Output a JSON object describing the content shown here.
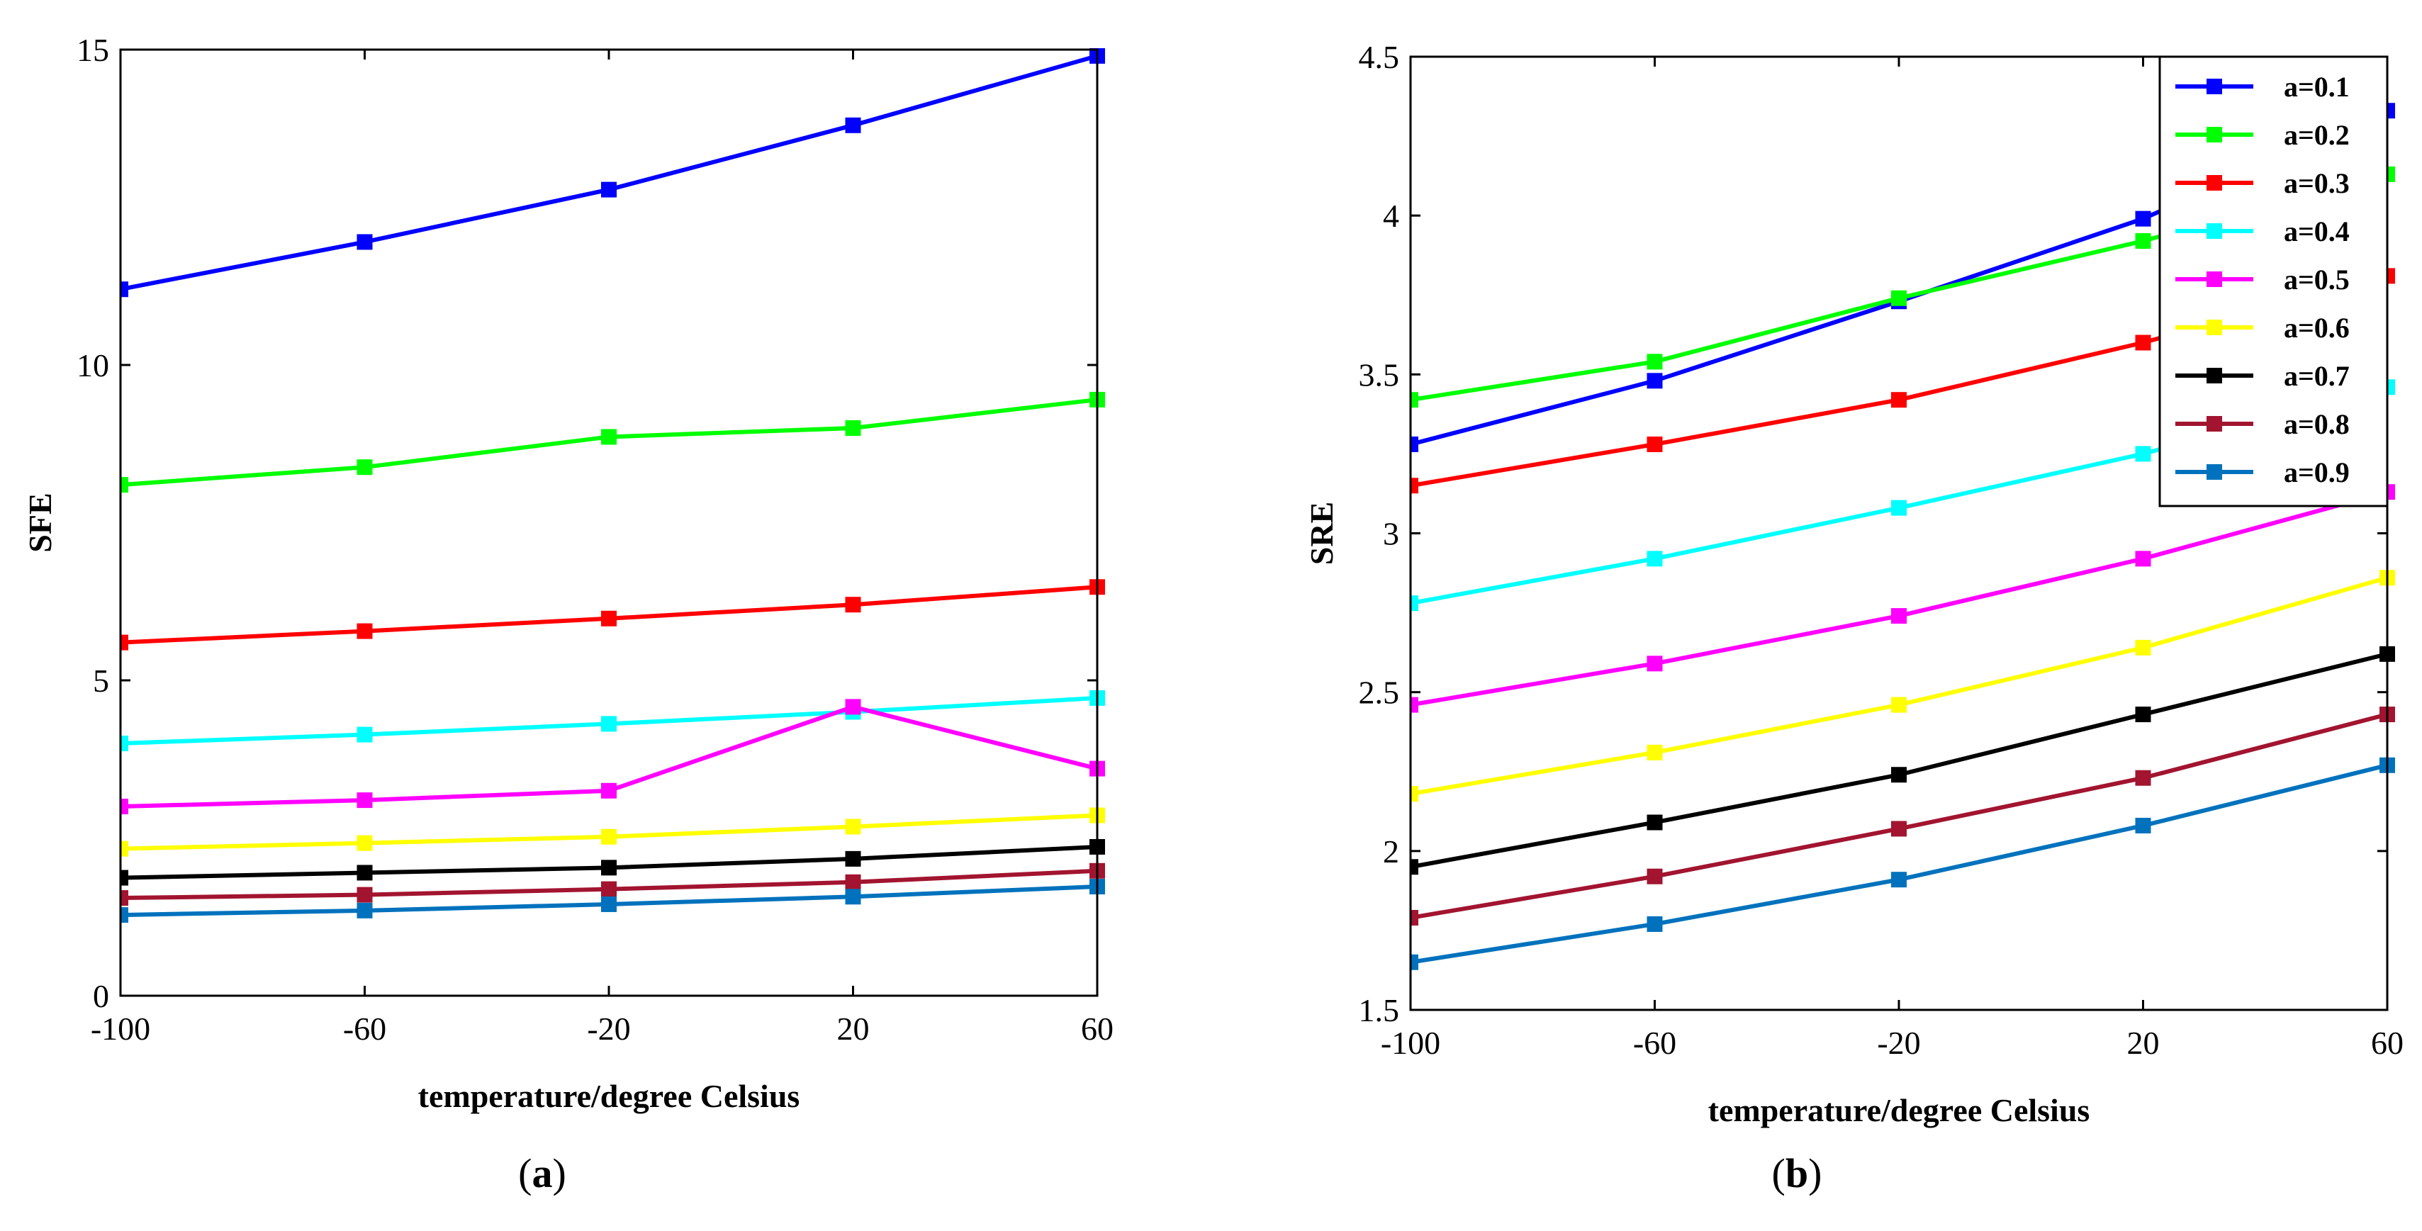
{
  "chart_data": [
    {
      "type": "line",
      "panel": "a",
      "caption_open": "(",
      "caption_letter": "a",
      "caption_close": ")",
      "xlabel": "temperature/degree Celsius",
      "ylabel": "SFE",
      "xlim": [
        -100,
        60
      ],
      "ylim": [
        0,
        15
      ],
      "x": [
        -100,
        -60,
        -20,
        20,
        60
      ],
      "xticks": [
        -100,
        -60,
        -20,
        20,
        60
      ],
      "yticks": [
        0,
        5,
        10,
        15
      ],
      "legend": false,
      "series": [
        {
          "name": "a=0.1",
          "color": "#0000ff",
          "values": [
            11.2,
            11.95,
            12.78,
            13.8,
            14.9
          ]
        },
        {
          "name": "a=0.2",
          "color": "#00ff00",
          "values": [
            8.1,
            8.38,
            8.86,
            9.0,
            9.45
          ]
        },
        {
          "name": "a=0.3",
          "color": "#ff0000",
          "values": [
            5.6,
            5.78,
            5.98,
            6.2,
            6.48
          ]
        },
        {
          "name": "a=0.4",
          "color": "#00ffff",
          "values": [
            4.0,
            4.14,
            4.31,
            4.5,
            4.72
          ]
        },
        {
          "name": "a=0.5",
          "color": "#ff00ff",
          "values": [
            3.0,
            3.1,
            3.25,
            4.58,
            3.6
          ]
        },
        {
          "name": "a=0.6",
          "color": "#ffff00",
          "values": [
            2.33,
            2.42,
            2.52,
            2.68,
            2.86
          ]
        },
        {
          "name": "a=0.7",
          "color": "#000000",
          "values": [
            1.87,
            1.95,
            2.03,
            2.17,
            2.36
          ]
        },
        {
          "name": "a=0.8",
          "color": "#a2142f",
          "values": [
            1.55,
            1.6,
            1.69,
            1.8,
            1.98
          ]
        },
        {
          "name": "a=0.9",
          "color": "#0072bd",
          "values": [
            1.28,
            1.35,
            1.45,
            1.57,
            1.73
          ]
        }
      ]
    },
    {
      "type": "line",
      "panel": "b",
      "caption_open": "(",
      "caption_letter": "b",
      "caption_close": ")",
      "xlabel": "temperature/degree Celsius",
      "ylabel": "SRE",
      "xlim": [
        -100,
        60
      ],
      "ylim": [
        1.5,
        4.5
      ],
      "x": [
        -100,
        -60,
        -20,
        20,
        60
      ],
      "xticks": [
        -100,
        -60,
        -20,
        20,
        60
      ],
      "yticks": [
        1.5,
        2,
        2.5,
        3,
        3.5,
        4,
        4.5
      ],
      "legend": true,
      "legend_location": "top-right",
      "series": [
        {
          "name": "a=0.1",
          "color": "#0000ff",
          "values": [
            3.28,
            3.48,
            3.73,
            3.99,
            4.33
          ]
        },
        {
          "name": "a=0.2",
          "color": "#00ff00",
          "values": [
            3.42,
            3.54,
            3.74,
            3.92,
            4.13
          ]
        },
        {
          "name": "a=0.3",
          "color": "#ff0000",
          "values": [
            3.15,
            3.28,
            3.42,
            3.6,
            3.81
          ]
        },
        {
          "name": "a=0.4",
          "color": "#00ffff",
          "values": [
            2.78,
            2.92,
            3.08,
            3.25,
            3.46
          ]
        },
        {
          "name": "a=0.5",
          "color": "#ff00ff",
          "values": [
            2.46,
            2.59,
            2.74,
            2.92,
            3.13
          ]
        },
        {
          "name": "a=0.6",
          "color": "#ffff00",
          "values": [
            2.18,
            2.31,
            2.46,
            2.64,
            2.86
          ]
        },
        {
          "name": "a=0.7",
          "color": "#000000",
          "values": [
            1.95,
            2.09,
            2.24,
            2.43,
            2.62
          ]
        },
        {
          "name": "a=0.8",
          "color": "#a2142f",
          "values": [
            1.79,
            1.92,
            2.07,
            2.23,
            2.43
          ]
        },
        {
          "name": "a=0.9",
          "color": "#0072bd",
          "values": [
            1.65,
            1.77,
            1.91,
            2.08,
            2.27
          ]
        }
      ]
    }
  ]
}
